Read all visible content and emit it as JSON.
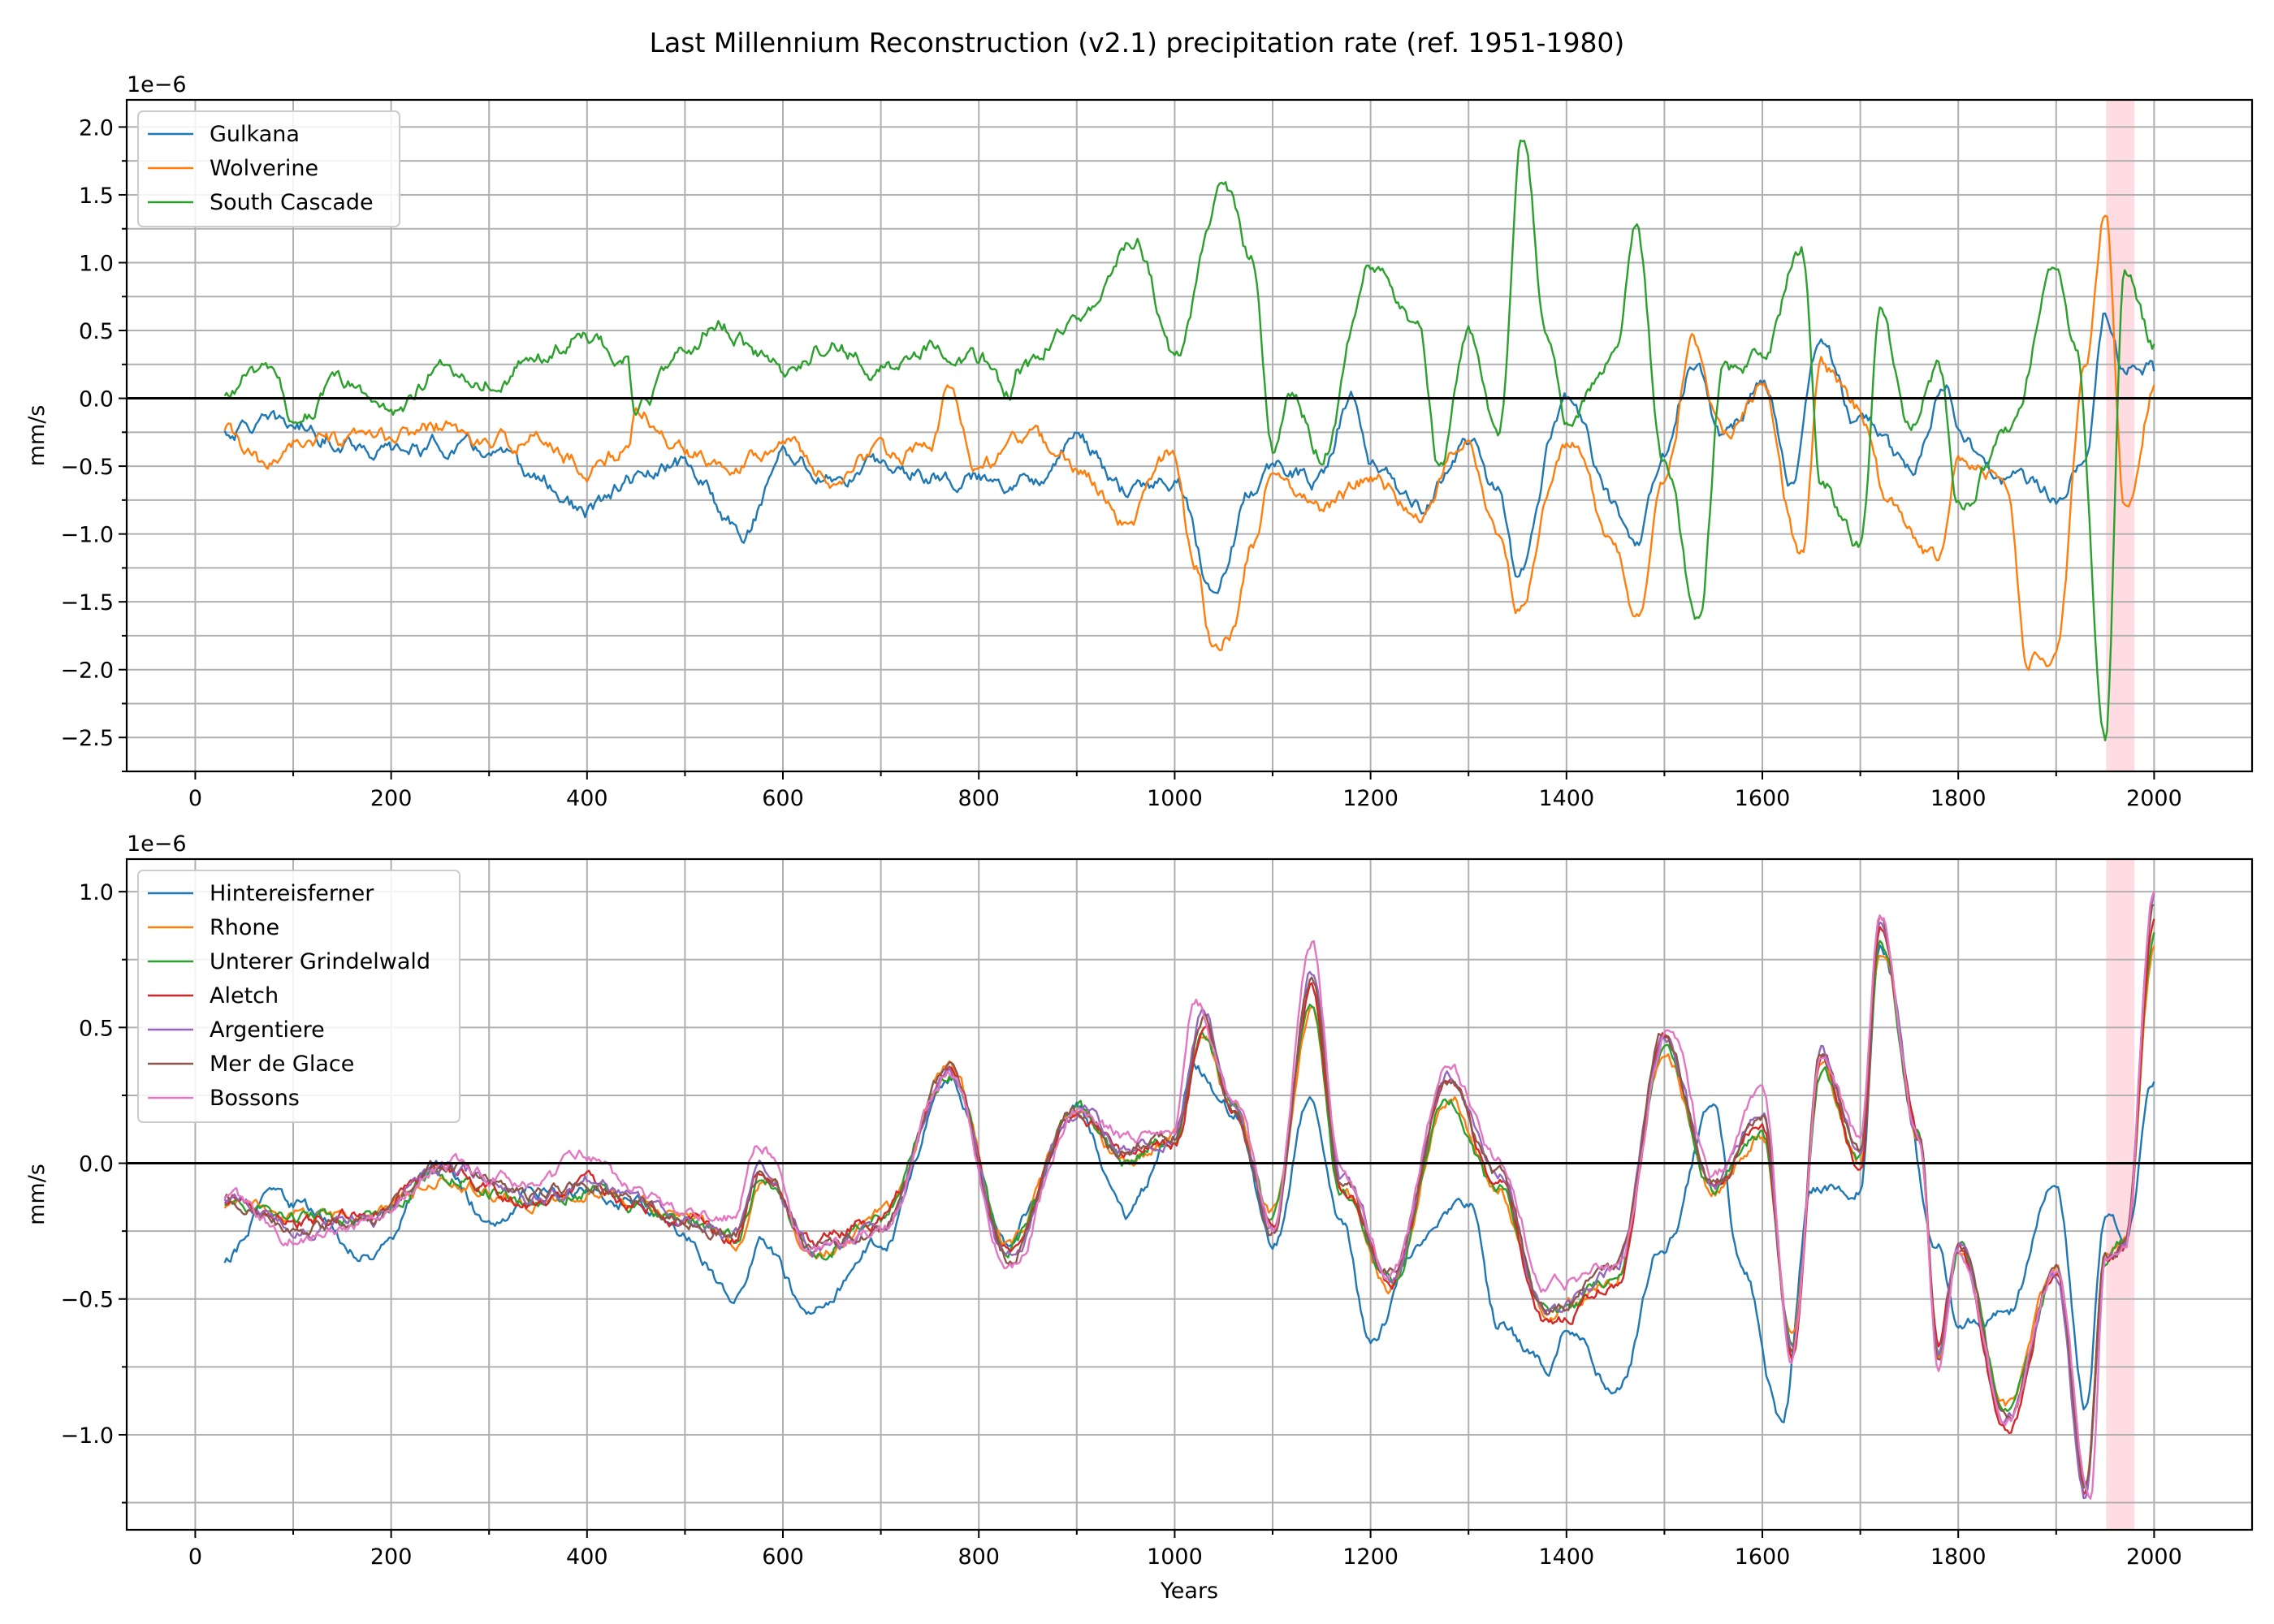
{
  "figure": {
    "title": "Last Millennium Reconstruction (v2.1) precipitation rate (ref. 1951-1980)"
  },
  "chart_data": [
    {
      "type": "line",
      "title": "",
      "xlabel": "",
      "ylabel": "mm/s",
      "scale_label": "1e−6",
      "xlim": [
        -70,
        2100
      ],
      "ylim": [
        -2.75,
        2.2
      ],
      "xticks": [
        "0",
        "200",
        "400",
        "600",
        "800",
        "1000",
        "1200",
        "1400",
        "1600",
        "1800",
        "2000"
      ],
      "yticks": [
        "−2.5",
        "−2.0",
        "−1.5",
        "−1.0",
        "−0.5",
        "0.0",
        "0.5",
        "1.0",
        "1.5",
        "2.0"
      ],
      "grid": true,
      "legend_position": "upper left",
      "reference_period": [
        1951,
        1980
      ],
      "zero_line": true,
      "series": [
        {
          "name": "Gulkana",
          "color": "#1f77b4",
          "x": [
            30,
            60,
            100,
            150,
            200,
            250,
            300,
            350,
            400,
            450,
            500,
            550,
            560,
            600,
            650,
            700,
            750,
            800,
            850,
            900,
            950,
            1000,
            1040,
            1080,
            1100,
            1150,
            1180,
            1200,
            1250,
            1300,
            1330,
            1350,
            1400,
            1450,
            1470,
            1500,
            1530,
            1560,
            1600,
            1630,
            1660,
            1700,
            1750,
            1790,
            1800,
            1850,
            1900,
            1930,
            1950,
            1970,
            2000
          ],
          "values": [
            -0.25,
            -0.2,
            -0.2,
            -0.3,
            -0.4,
            -0.35,
            -0.4,
            -0.6,
            -0.85,
            -0.6,
            -0.5,
            -0.9,
            -1.0,
            -0.4,
            -0.6,
            -0.5,
            -0.55,
            -0.6,
            -0.6,
            -0.3,
            -0.7,
            -0.6,
            -1.4,
            -0.7,
            -0.5,
            -0.6,
            0.0,
            -0.5,
            -0.8,
            -0.3,
            -0.7,
            -1.3,
            0.0,
            -0.8,
            -1.15,
            -0.4,
            0.3,
            -0.3,
            0.1,
            -0.6,
            0.4,
            -0.2,
            -0.5,
            0.1,
            -0.3,
            -0.6,
            -0.7,
            -0.4,
            0.7,
            0.2,
            0.2
          ]
        },
        {
          "name": "Wolverine",
          "color": "#ff7f0e",
          "x": [
            30,
            60,
            70,
            100,
            150,
            200,
            250,
            300,
            350,
            400,
            440,
            450,
            500,
            550,
            600,
            650,
            700,
            750,
            770,
            800,
            850,
            900,
            950,
            1000,
            1020,
            1040,
            1060,
            1080,
            1100,
            1150,
            1200,
            1250,
            1300,
            1330,
            1350,
            1400,
            1450,
            1470,
            1500,
            1530,
            1560,
            1600,
            1640,
            1660,
            1700,
            1730,
            1780,
            1800,
            1850,
            1870,
            1900,
            1930,
            1950,
            1970,
            2000
          ],
          "values": [
            -0.25,
            -0.45,
            -0.55,
            -0.3,
            -0.35,
            -0.3,
            -0.2,
            -0.35,
            -0.3,
            -0.5,
            -0.4,
            -0.1,
            -0.4,
            -0.45,
            -0.3,
            -0.6,
            -0.4,
            -0.4,
            0.05,
            -0.5,
            -0.3,
            -0.5,
            -0.9,
            -0.4,
            -1.2,
            -1.8,
            -1.7,
            -1.1,
            -0.5,
            -0.8,
            -0.6,
            -0.85,
            -0.3,
            -1.0,
            -1.5,
            -0.3,
            -1.1,
            -1.65,
            -0.6,
            0.4,
            -0.3,
            0.1,
            -1.2,
            0.2,
            -0.1,
            -0.8,
            -1.2,
            -0.4,
            -0.6,
            -1.9,
            -1.9,
            0.2,
            1.4,
            -0.8,
            0.1
          ]
        },
        {
          "name": "South Cascade",
          "color": "#2ca02c",
          "x": [
            30,
            60,
            80,
            100,
            150,
            180,
            200,
            250,
            300,
            350,
            400,
            440,
            450,
            500,
            530,
            600,
            650,
            700,
            750,
            800,
            830,
            840,
            900,
            960,
            1000,
            1050,
            1080,
            1100,
            1120,
            1150,
            1200,
            1250,
            1270,
            1300,
            1330,
            1355,
            1380,
            1400,
            1450,
            1470,
            1500,
            1535,
            1560,
            1600,
            1640,
            1660,
            1700,
            1720,
            1750,
            1780,
            1800,
            1850,
            1900,
            1920,
            1950,
            1970,
            2000
          ],
          "values": [
            0.0,
            0.2,
            0.15,
            -0.15,
            0.1,
            0.0,
            -0.1,
            0.2,
            0.15,
            0.3,
            0.45,
            0.3,
            -0.1,
            0.3,
            0.55,
            0.2,
            0.4,
            0.2,
            0.4,
            0.3,
            0.0,
            0.2,
            0.6,
            1.2,
            0.3,
            1.55,
            1.0,
            -0.4,
            0.0,
            -0.4,
            1.0,
            0.5,
            -0.5,
            0.5,
            -0.3,
            1.9,
            0.5,
            -0.2,
            0.3,
            1.25,
            -0.5,
            -1.65,
            0.2,
            0.3,
            1.1,
            -0.6,
            -1.1,
            0.6,
            -0.2,
            0.2,
            -0.8,
            -0.3,
            0.95,
            0.4,
            -2.5,
            1.0,
            0.4
          ]
        }
      ]
    },
    {
      "type": "line",
      "title": "",
      "xlabel": "Years",
      "ylabel": "mm/s",
      "scale_label": "1e−6",
      "xlim": [
        -70,
        2100
      ],
      "ylim": [
        -1.35,
        1.12
      ],
      "xticks": [
        "0",
        "200",
        "400",
        "600",
        "800",
        "1000",
        "1200",
        "1400",
        "1600",
        "1800",
        "2000"
      ],
      "yticks": [
        "−1.0",
        "−0.5",
        "0.0",
        "0.5",
        "1.0"
      ],
      "grid": true,
      "legend_position": "upper left",
      "reference_period": [
        1951,
        1980
      ],
      "zero_line": true,
      "series": [
        {
          "name": "Hintereisferner",
          "color": "#1f77b4",
          "x": [
            30,
            80,
            100,
            180,
            250,
            300,
            350,
            400,
            450,
            500,
            550,
            580,
            630,
            700,
            770,
            830,
            850,
            900,
            950,
            1000,
            1020,
            1060,
            1100,
            1140,
            1170,
            1200,
            1250,
            1300,
            1330,
            1380,
            1400,
            1450,
            1500,
            1550,
            1580,
            1620,
            1650,
            1700,
            1720,
            1780,
            1800,
            1850,
            1900,
            1930,
            1950,
            1970,
            2000
          ],
          "values": [
            -0.35,
            -0.1,
            -0.15,
            -0.35,
            0.0,
            -0.2,
            -0.1,
            -0.1,
            -0.15,
            -0.25,
            -0.5,
            -0.3,
            -0.55,
            -0.3,
            0.3,
            -0.3,
            -0.15,
            0.2,
            -0.2,
            0.1,
            0.35,
            0.2,
            -0.3,
            0.25,
            -0.2,
            -0.65,
            -0.3,
            -0.15,
            -0.6,
            -0.75,
            -0.6,
            -0.85,
            -0.3,
            0.2,
            -0.4,
            -0.95,
            -0.1,
            -0.1,
            0.8,
            -0.3,
            -0.6,
            -0.55,
            -0.05,
            -0.9,
            -0.2,
            -0.25,
            0.3
          ]
        },
        {
          "name": "Rhone",
          "color": "#ff7f0e",
          "x": [
            30,
            100,
            180,
            250,
            350,
            400,
            450,
            500,
            550,
            580,
            630,
            700,
            770,
            830,
            900,
            950,
            1000,
            1030,
            1060,
            1100,
            1140,
            1170,
            1220,
            1280,
            1330,
            1380,
            1450,
            1500,
            1550,
            1600,
            1630,
            1660,
            1700,
            1720,
            1760,
            1780,
            1800,
            1850,
            1900,
            1930,
            1950,
            1970,
            2000
          ],
          "values": [
            -0.15,
            -0.2,
            -0.2,
            -0.05,
            -0.15,
            -0.1,
            -0.15,
            -0.2,
            -0.3,
            -0.05,
            -0.35,
            -0.2,
            0.35,
            -0.3,
            0.2,
            0.0,
            0.1,
            0.45,
            0.2,
            -0.2,
            0.55,
            -0.1,
            -0.45,
            0.25,
            -0.1,
            -0.55,
            -0.45,
            0.4,
            -0.1,
            0.1,
            -0.65,
            0.35,
            0.0,
            0.8,
            0.1,
            -0.7,
            -0.3,
            -0.9,
            -0.4,
            -1.2,
            -0.35,
            -0.3,
            0.8
          ]
        },
        {
          "name": "Unterer Grindelwald",
          "color": "#2ca02c",
          "x": [
            30,
            100,
            180,
            250,
            350,
            400,
            450,
            500,
            550,
            580,
            630,
            700,
            770,
            830,
            900,
            950,
            1000,
            1030,
            1060,
            1100,
            1140,
            1170,
            1220,
            1280,
            1330,
            1380,
            1450,
            1500,
            1550,
            1600,
            1630,
            1660,
            1700,
            1720,
            1760,
            1780,
            1800,
            1850,
            1900,
            1930,
            1950,
            1970,
            2000
          ],
          "values": [
            -0.14,
            -0.2,
            -0.2,
            -0.04,
            -0.15,
            -0.1,
            -0.15,
            -0.2,
            -0.28,
            -0.05,
            -0.33,
            -0.2,
            0.33,
            -0.3,
            0.2,
            0.0,
            0.1,
            0.47,
            0.2,
            -0.2,
            0.6,
            -0.1,
            -0.45,
            0.25,
            -0.1,
            -0.55,
            -0.45,
            0.42,
            -0.1,
            0.1,
            -0.65,
            0.35,
            0.0,
            0.82,
            0.1,
            -0.7,
            -0.3,
            -0.9,
            -0.4,
            -1.2,
            -0.35,
            -0.3,
            0.85
          ]
        },
        {
          "name": "Aletch",
          "color": "#d62728",
          "x": [
            30,
            100,
            180,
            250,
            350,
            400,
            450,
            500,
            550,
            580,
            630,
            700,
            770,
            830,
            900,
            950,
            1000,
            1030,
            1060,
            1100,
            1140,
            1170,
            1220,
            1280,
            1330,
            1380,
            1450,
            1500,
            1550,
            1600,
            1630,
            1660,
            1700,
            1720,
            1760,
            1780,
            1800,
            1850,
            1900,
            1930,
            1950,
            1970,
            2000
          ],
          "values": [
            -0.13,
            -0.22,
            -0.18,
            -0.03,
            -0.15,
            -0.08,
            -0.15,
            -0.2,
            -0.27,
            -0.03,
            -0.3,
            -0.2,
            0.32,
            -0.32,
            0.18,
            0.02,
            0.08,
            0.5,
            0.2,
            -0.22,
            0.65,
            -0.08,
            -0.45,
            0.28,
            -0.08,
            -0.6,
            -0.45,
            0.45,
            -0.1,
            0.15,
            -0.7,
            0.38,
            0.0,
            0.85,
            0.1,
            -0.7,
            -0.3,
            -1.0,
            -0.4,
            -1.2,
            -0.35,
            -0.3,
            0.9
          ]
        },
        {
          "name": "Argentiere",
          "color": "#9467bd",
          "x": [
            30,
            100,
            180,
            250,
            350,
            400,
            450,
            500,
            550,
            580,
            630,
            700,
            770,
            830,
            900,
            950,
            1000,
            1030,
            1060,
            1100,
            1140,
            1170,
            1220,
            1280,
            1330,
            1380,
            1450,
            1500,
            1550,
            1600,
            1630,
            1660,
            1700,
            1720,
            1760,
            1780,
            1800,
            1850,
            1900,
            1930,
            1950,
            1970,
            2000
          ],
          "values": [
            -0.12,
            -0.24,
            -0.2,
            -0.02,
            -0.12,
            -0.06,
            -0.13,
            -0.2,
            -0.26,
            -0.02,
            -0.32,
            -0.25,
            0.34,
            -0.35,
            0.2,
            0.05,
            0.1,
            0.55,
            0.2,
            -0.25,
            0.7,
            -0.05,
            -0.4,
            0.32,
            -0.05,
            -0.55,
            -0.4,
            0.48,
            -0.08,
            0.18,
            -0.7,
            0.4,
            0.05,
            0.9,
            0.1,
            -0.72,
            -0.3,
            -0.95,
            -0.4,
            -1.25,
            -0.35,
            -0.3,
            1.0
          ]
        },
        {
          "name": "Mer de Glace",
          "color": "#8c564b",
          "x": [
            30,
            100,
            180,
            250,
            350,
            400,
            450,
            500,
            550,
            580,
            630,
            700,
            770,
            830,
            900,
            950,
            1000,
            1030,
            1060,
            1100,
            1140,
            1170,
            1220,
            1280,
            1330,
            1380,
            1450,
            1500,
            1550,
            1600,
            1630,
            1660,
            1700,
            1720,
            1760,
            1780,
            1800,
            1850,
            1900,
            1930,
            1950,
            1970,
            2000
          ],
          "values": [
            -0.12,
            -0.24,
            -0.2,
            -0.02,
            -0.12,
            -0.06,
            -0.13,
            -0.2,
            -0.26,
            -0.02,
            -0.32,
            -0.25,
            0.34,
            -0.35,
            0.2,
            0.05,
            0.1,
            0.53,
            0.2,
            -0.25,
            0.68,
            -0.05,
            -0.4,
            0.3,
            -0.05,
            -0.55,
            -0.4,
            0.47,
            -0.08,
            0.18,
            -0.7,
            0.4,
            0.05,
            0.88,
            0.1,
            -0.72,
            -0.3,
            -0.95,
            -0.4,
            -1.22,
            -0.35,
            -0.3,
            0.95
          ]
        },
        {
          "name": "Bossons",
          "color": "#e377c2",
          "x": [
            30,
            100,
            180,
            250,
            350,
            400,
            450,
            500,
            550,
            575,
            630,
            700,
            770,
            830,
            900,
            950,
            1000,
            1020,
            1060,
            1100,
            1140,
            1170,
            1220,
            1280,
            1330,
            1380,
            1450,
            1505,
            1550,
            1600,
            1630,
            1660,
            1700,
            1720,
            1760,
            1780,
            1800,
            1850,
            1900,
            1935,
            1950,
            1970,
            2000
          ],
          "values": [
            -0.12,
            -0.27,
            -0.22,
            0.0,
            -0.08,
            0.03,
            -0.1,
            -0.18,
            -0.2,
            0.08,
            -0.32,
            -0.25,
            0.33,
            -0.4,
            0.2,
            0.1,
            0.15,
            0.6,
            0.25,
            -0.25,
            0.82,
            -0.05,
            -0.4,
            0.35,
            0.0,
            -0.45,
            -0.4,
            0.5,
            -0.05,
            0.25,
            -0.7,
            0.4,
            0.1,
            0.92,
            0.1,
            -0.75,
            -0.3,
            -0.95,
            -0.4,
            -1.25,
            -0.35,
            -0.3,
            1.0
          ]
        }
      ]
    }
  ]
}
